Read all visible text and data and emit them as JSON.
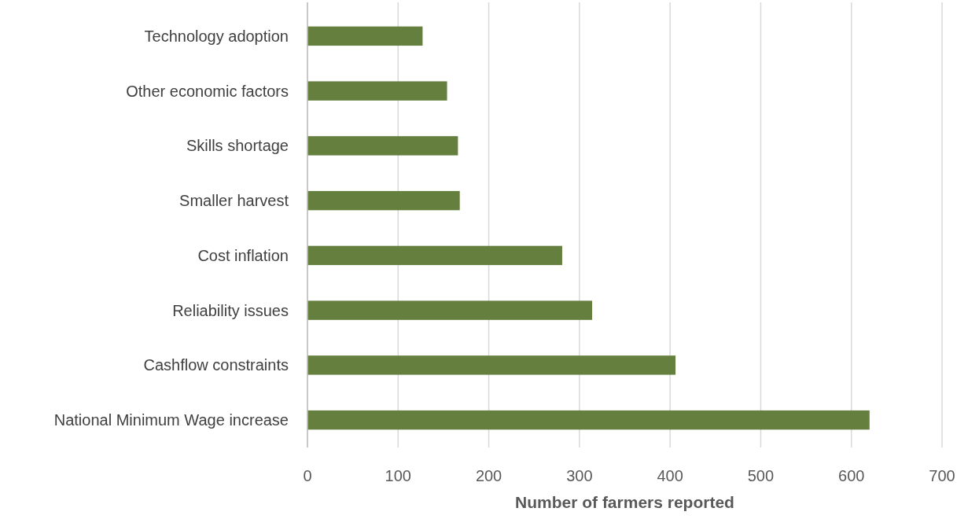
{
  "chart_data": {
    "type": "bar",
    "orientation": "horizontal",
    "xlabel": "Number of farmers reported",
    "categories": [
      "Technology adoption",
      "Other economic factors",
      "Skills shortage",
      "Smaller harvest",
      "Cost inflation",
      "Reliability issues",
      "Cashflow constraints",
      "National Minimum Wage increase"
    ],
    "values": [
      127,
      154,
      166,
      168,
      281,
      314,
      406,
      620
    ],
    "color": "#647f3e",
    "xlim": [
      0,
      700
    ],
    "xticks": [
      0,
      100,
      200,
      300,
      400,
      500,
      600,
      700
    ],
    "grid": "x"
  }
}
